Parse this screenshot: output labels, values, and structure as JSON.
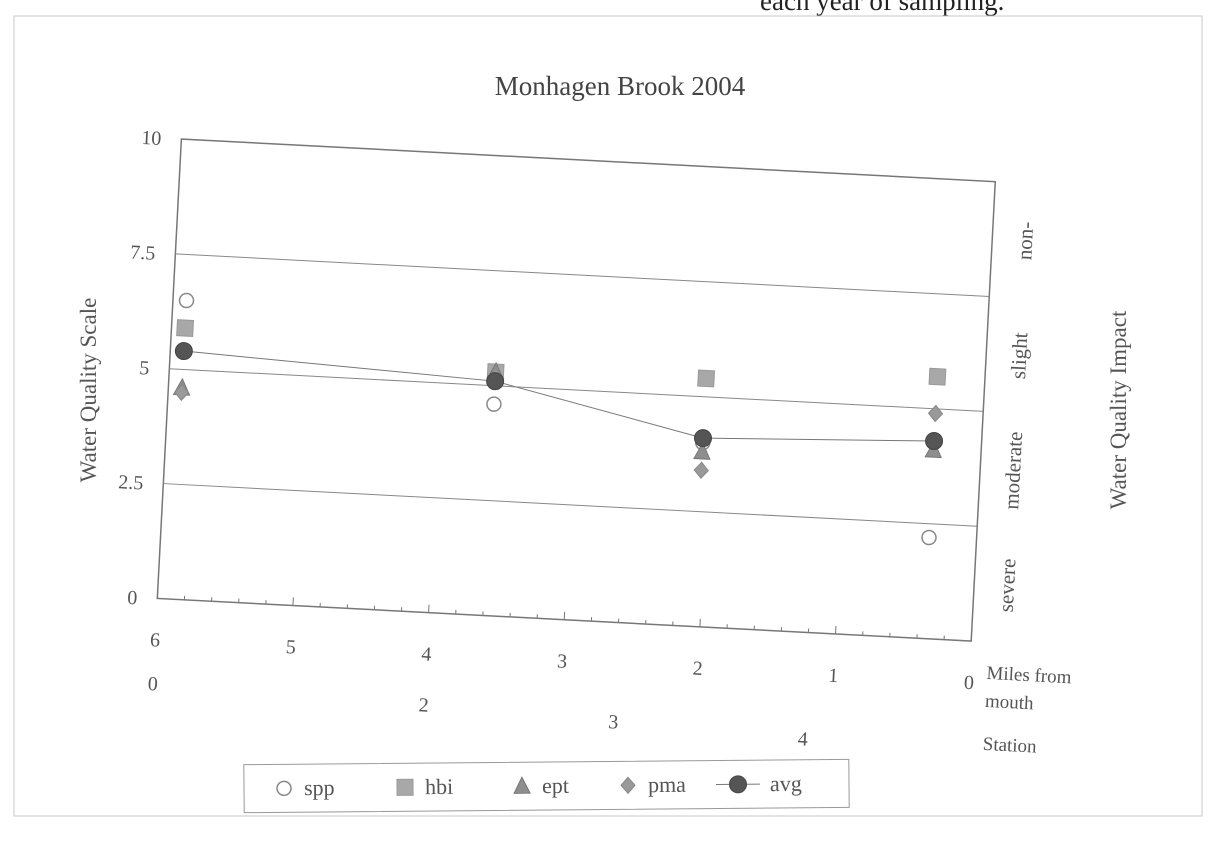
{
  "page": {
    "caption_fragment": "each year of sampling."
  },
  "chart_data": {
    "type": "scatter",
    "title": "Monhagen Brook 2004",
    "ylabel": "Water Quality Scale",
    "ylabel_right": "Water Quality Impact",
    "ylim": [
      0,
      10
    ],
    "y_ticks": [
      "0",
      "2.5",
      "5",
      "7.5",
      "10"
    ],
    "impact_labels": [
      "severe",
      "moderate",
      "slight",
      "non-"
    ],
    "x_axis": {
      "label_line1": "Miles from",
      "label_line2": "mouth",
      "xlim": [
        6,
        0
      ],
      "ticks": [
        "6",
        "5",
        "4",
        "3",
        "2",
        "1",
        "0"
      ]
    },
    "station_axis": {
      "label": "Station",
      "ticks": [
        {
          "label": "0",
          "miles": 6
        },
        {
          "label": "2",
          "miles": 4.0
        },
        {
          "label": "3",
          "miles": 2.6
        },
        {
          "label": "4",
          "miles": 1.2
        }
      ]
    },
    "x": [
      5.9,
      3.6,
      2.05,
      0.35
    ],
    "series": [
      {
        "name": "spp",
        "marker": "circle-open",
        "values": [
          6.5,
          4.6,
          4.0,
          2.2
        ]
      },
      {
        "name": "hbi",
        "marker": "square",
        "values": [
          5.9,
          5.3,
          5.4,
          5.7
        ]
      },
      {
        "name": "ept",
        "marker": "triangle",
        "values": [
          4.6,
          5.3,
          3.8,
          4.1
        ]
      },
      {
        "name": "pma",
        "marker": "diamond",
        "values": [
          4.5,
          5.2,
          3.4,
          4.9
        ]
      },
      {
        "name": "avg",
        "marker": "circle-filled-line",
        "values": [
          5.4,
          5.1,
          4.1,
          4.3
        ]
      }
    ],
    "grid": true,
    "legend_position": "bottom"
  }
}
